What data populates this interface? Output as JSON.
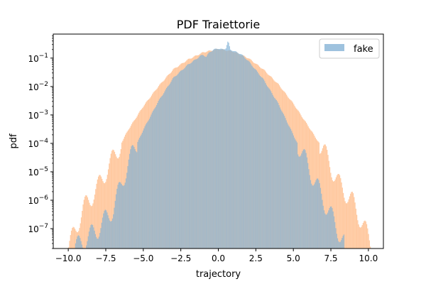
{
  "chart_data": {
    "type": "histogram",
    "title": "PDF Traiettorie",
    "xlabel": "trajectory",
    "ylabel": "pdf",
    "xlim": [
      -11.0,
      11.0
    ],
    "ylim": [
      2e-08,
      0.7
    ],
    "yscale": "log",
    "x_ticks": [
      {
        "value": -10.0,
        "label": "−10.0"
      },
      {
        "value": -7.5,
        "label": "−7.5"
      },
      {
        "value": -5.0,
        "label": "−5.0"
      },
      {
        "value": -2.5,
        "label": "−2.5"
      },
      {
        "value": 0.0,
        "label": "0.0"
      },
      {
        "value": 2.5,
        "label": "2.5"
      },
      {
        "value": 5.0,
        "label": "5.0"
      },
      {
        "value": 7.5,
        "label": "7.5"
      },
      {
        "value": 10.0,
        "label": "10.0"
      }
    ],
    "y_ticks": [
      {
        "exp": -7,
        "base": "10",
        "sup": "−7"
      },
      {
        "exp": -6,
        "base": "10",
        "sup": "−6"
      },
      {
        "exp": -5,
        "base": "10",
        "sup": "−5"
      },
      {
        "exp": -4,
        "base": "10",
        "sup": "−4"
      },
      {
        "exp": -3,
        "base": "10",
        "sup": "−3"
      },
      {
        "exp": -2,
        "base": "10",
        "sup": "−2"
      },
      {
        "exp": -1,
        "base": "10",
        "sup": "−1"
      }
    ],
    "legend": {
      "position": "top-right",
      "entries": [
        {
          "name": "fake",
          "color": "#9ec2de"
        }
      ]
    },
    "grid": false,
    "series": [
      {
        "name": "fake",
        "color": "#7fb0d6",
        "opacity": 0.7,
        "points": [
          [
            -9.6,
            2e-08
          ],
          [
            -8.0,
            1e-07
          ],
          [
            -7.0,
            5e-07
          ],
          [
            -6.0,
            2e-05
          ],
          [
            -5.0,
            0.0003
          ],
          [
            -4.0,
            0.003
          ],
          [
            -3.0,
            0.02
          ],
          [
            -2.0,
            0.06
          ],
          [
            -1.5,
            0.09
          ],
          [
            -1.2,
            0.12
          ],
          [
            -1.0,
            0.13
          ],
          [
            -0.8,
            0.11
          ],
          [
            -0.6,
            0.16
          ],
          [
            -0.3,
            0.2
          ],
          [
            0.0,
            0.22
          ],
          [
            0.3,
            0.2
          ],
          [
            0.5,
            0.22
          ],
          [
            0.65,
            0.4
          ],
          [
            0.8,
            0.2
          ],
          [
            1.0,
            0.18
          ],
          [
            1.5,
            0.14
          ],
          [
            2.0,
            0.08
          ],
          [
            3.0,
            0.018
          ],
          [
            4.0,
            0.0025
          ],
          [
            5.0,
            0.0002
          ],
          [
            6.0,
            1.5e-05
          ],
          [
            7.0,
            1e-06
          ],
          [
            7.5,
            3e-07
          ],
          [
            8.4,
            3e-08
          ]
        ]
      },
      {
        "name": "",
        "color": "#ffbb88",
        "opacity": 0.8,
        "points": [
          [
            -10.0,
            2e-08
          ],
          [
            -9.5,
            1e-07
          ],
          [
            -9.0,
            5e-07
          ],
          [
            -8.0,
            3e-06
          ],
          [
            -7.5,
            1e-05
          ],
          [
            -7.0,
            3e-05
          ],
          [
            -6.0,
            0.0003
          ],
          [
            -5.0,
            0.002
          ],
          [
            -4.0,
            0.01
          ],
          [
            -3.0,
            0.04
          ],
          [
            -2.0,
            0.09
          ],
          [
            -1.0,
            0.16
          ],
          [
            0.0,
            0.21
          ],
          [
            1.0,
            0.17
          ],
          [
            2.0,
            0.1
          ],
          [
            3.0,
            0.04
          ],
          [
            4.0,
            0.012
          ],
          [
            5.0,
            0.0025
          ],
          [
            6.0,
            0.0004
          ],
          [
            7.0,
            6e-05
          ],
          [
            7.5,
            1.5e-05
          ],
          [
            8.0,
            4e-06
          ],
          [
            9.0,
            8e-07
          ],
          [
            9.5,
            2e-07
          ],
          [
            10.0,
            5e-08
          ],
          [
            10.3,
            2e-08
          ]
        ]
      }
    ]
  }
}
